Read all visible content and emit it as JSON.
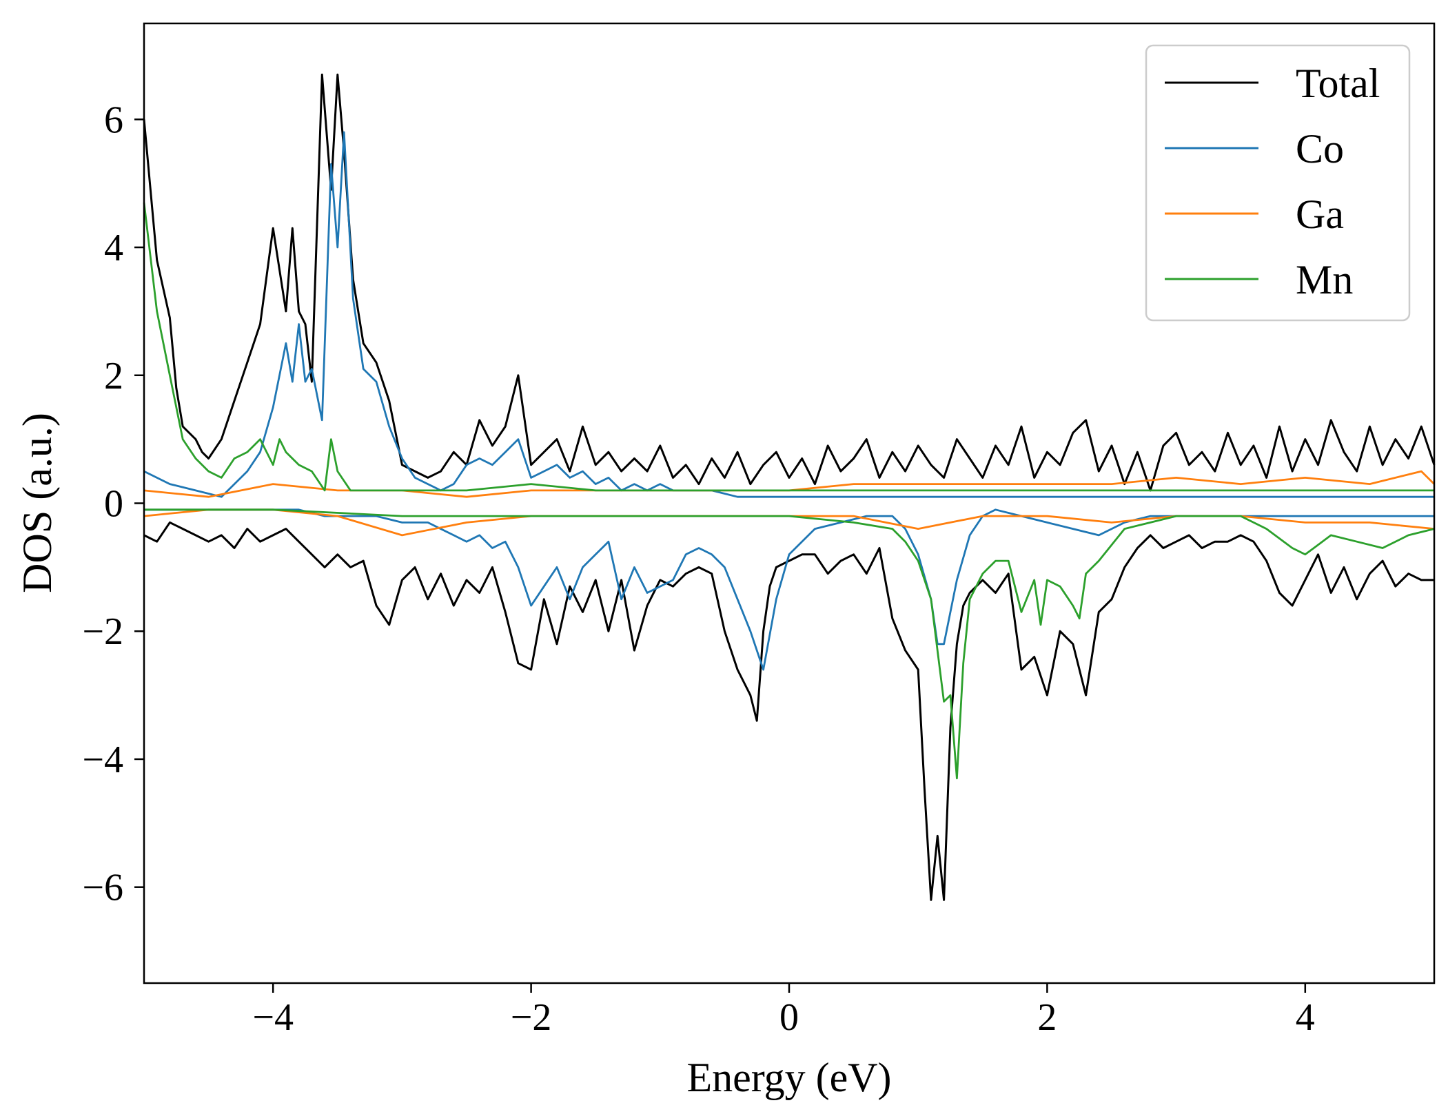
{
  "chart_data": {
    "type": "line",
    "title": "",
    "xlabel": "Energy (eV)",
    "ylabel": "DOS (a.u.)",
    "xlim": [
      -5,
      5
    ],
    "ylim": [
      -7.5,
      7.5
    ],
    "xticks": [
      -4,
      -2,
      0,
      2,
      4
    ],
    "xtick_labels": [
      "−4",
      "−2",
      "0",
      "2",
      "4"
    ],
    "yticks": [
      -6,
      -4,
      -2,
      0,
      2,
      4,
      6
    ],
    "ytick_labels": [
      "−6",
      "−4",
      "−2",
      "0",
      "2",
      "4",
      "6"
    ],
    "grid": false,
    "legend_position": "top-right",
    "series": [
      {
        "name": "Total",
        "color": "#000000",
        "spin_up": {
          "x": [
            -5.0,
            -4.9,
            -4.8,
            -4.75,
            -4.7,
            -4.6,
            -4.55,
            -4.5,
            -4.4,
            -4.3,
            -4.2,
            -4.1,
            -4.0,
            -3.9,
            -3.85,
            -3.8,
            -3.75,
            -3.7,
            -3.62,
            -3.55,
            -3.5,
            -3.45,
            -3.38,
            -3.3,
            -3.2,
            -3.1,
            -3.0,
            -2.9,
            -2.8,
            -2.7,
            -2.6,
            -2.5,
            -2.4,
            -2.3,
            -2.2,
            -2.1,
            -2.0,
            -1.9,
            -1.8,
            -1.7,
            -1.6,
            -1.5,
            -1.4,
            -1.3,
            -1.2,
            -1.1,
            -1.0,
            -0.9,
            -0.8,
            -0.7,
            -0.6,
            -0.5,
            -0.4,
            -0.3,
            -0.2,
            -0.1,
            0.0,
            0.1,
            0.2,
            0.3,
            0.4,
            0.5,
            0.6,
            0.7,
            0.8,
            0.9,
            1.0,
            1.1,
            1.2,
            1.3,
            1.4,
            1.5,
            1.6,
            1.7,
            1.8,
            1.9,
            2.0,
            2.1,
            2.2,
            2.3,
            2.4,
            2.5,
            2.6,
            2.7,
            2.8,
            2.9,
            3.0,
            3.1,
            3.2,
            3.3,
            3.4,
            3.5,
            3.6,
            3.7,
            3.8,
            3.9,
            4.0,
            4.1,
            4.2,
            4.3,
            4.4,
            4.5,
            4.6,
            4.7,
            4.8,
            4.9,
            5.0
          ],
          "y": [
            6.0,
            3.8,
            2.9,
            1.8,
            1.2,
            1.0,
            0.8,
            0.7,
            1.0,
            1.6,
            2.2,
            2.8,
            4.3,
            3.0,
            4.3,
            3.0,
            2.8,
            1.9,
            6.7,
            4.9,
            6.7,
            5.5,
            3.5,
            2.5,
            2.2,
            1.6,
            0.6,
            0.5,
            0.4,
            0.5,
            0.8,
            0.6,
            1.3,
            0.9,
            1.2,
            2.0,
            0.6,
            0.8,
            1.0,
            0.5,
            1.2,
            0.6,
            0.8,
            0.5,
            0.7,
            0.5,
            0.9,
            0.4,
            0.6,
            0.3,
            0.7,
            0.4,
            0.8,
            0.3,
            0.6,
            0.8,
            0.4,
            0.7,
            0.3,
            0.9,
            0.5,
            0.7,
            1.0,
            0.4,
            0.8,
            0.5,
            0.9,
            0.6,
            0.4,
            1.0,
            0.7,
            0.4,
            0.9,
            0.6,
            1.2,
            0.4,
            0.8,
            0.6,
            1.1,
            1.3,
            0.5,
            0.9,
            0.3,
            0.8,
            0.2,
            0.9,
            1.1,
            0.6,
            0.8,
            0.5,
            1.1,
            0.6,
            0.9,
            0.4,
            1.2,
            0.5,
            1.0,
            0.6,
            1.3,
            0.8,
            0.5,
            1.2,
            0.6,
            1.0,
            0.7,
            1.2,
            0.6
          ]
        },
        "spin_down": {
          "x": [
            -5.0,
            -4.9,
            -4.8,
            -4.7,
            -4.6,
            -4.5,
            -4.4,
            -4.3,
            -4.2,
            -4.1,
            -4.0,
            -3.9,
            -3.8,
            -3.7,
            -3.6,
            -3.5,
            -3.4,
            -3.3,
            -3.2,
            -3.1,
            -3.0,
            -2.9,
            -2.8,
            -2.7,
            -2.6,
            -2.5,
            -2.4,
            -2.3,
            -2.2,
            -2.1,
            -2.0,
            -1.9,
            -1.8,
            -1.7,
            -1.6,
            -1.5,
            -1.4,
            -1.3,
            -1.2,
            -1.1,
            -1.0,
            -0.9,
            -0.8,
            -0.7,
            -0.6,
            -0.5,
            -0.4,
            -0.3,
            -0.25,
            -0.2,
            -0.15,
            -0.1,
            0.0,
            0.1,
            0.2,
            0.3,
            0.4,
            0.5,
            0.6,
            0.7,
            0.8,
            0.9,
            1.0,
            1.05,
            1.1,
            1.15,
            1.2,
            1.25,
            1.3,
            1.35,
            1.4,
            1.5,
            1.6,
            1.7,
            1.8,
            1.9,
            2.0,
            2.1,
            2.2,
            2.3,
            2.4,
            2.5,
            2.6,
            2.7,
            2.8,
            2.9,
            3.0,
            3.1,
            3.2,
            3.3,
            3.4,
            3.5,
            3.6,
            3.7,
            3.8,
            3.9,
            4.0,
            4.1,
            4.2,
            4.3,
            4.4,
            4.5,
            4.6,
            4.7,
            4.8,
            4.9,
            5.0
          ],
          "y": [
            -0.5,
            -0.6,
            -0.3,
            -0.4,
            -0.5,
            -0.6,
            -0.5,
            -0.7,
            -0.4,
            -0.6,
            -0.5,
            -0.4,
            -0.6,
            -0.8,
            -1.0,
            -0.8,
            -1.0,
            -0.9,
            -1.6,
            -1.9,
            -1.2,
            -1.0,
            -1.5,
            -1.1,
            -1.6,
            -1.2,
            -1.4,
            -1.0,
            -1.7,
            -2.5,
            -2.6,
            -1.5,
            -2.2,
            -1.3,
            -1.7,
            -1.2,
            -2.0,
            -1.2,
            -2.3,
            -1.6,
            -1.2,
            -1.3,
            -1.1,
            -1.0,
            -1.1,
            -2.0,
            -2.6,
            -3.0,
            -3.4,
            -2.0,
            -1.3,
            -1.0,
            -0.9,
            -0.8,
            -0.8,
            -1.1,
            -0.9,
            -0.8,
            -1.1,
            -0.7,
            -1.8,
            -2.3,
            -2.6,
            -4.5,
            -6.2,
            -5.2,
            -6.2,
            -3.5,
            -2.2,
            -1.6,
            -1.4,
            -1.2,
            -1.4,
            -1.1,
            -2.6,
            -2.4,
            -3.0,
            -2.0,
            -2.2,
            -3.0,
            -1.7,
            -1.5,
            -1.0,
            -0.7,
            -0.5,
            -0.7,
            -0.6,
            -0.5,
            -0.7,
            -0.6,
            -0.6,
            -0.5,
            -0.6,
            -0.9,
            -1.4,
            -1.6,
            -1.2,
            -0.8,
            -1.4,
            -1.0,
            -1.5,
            -1.1,
            -0.9,
            -1.3,
            -1.1,
            -1.2,
            -1.2
          ]
        }
      },
      {
        "name": "Co",
        "color": "#1f77b4",
        "spin_up": {
          "x": [
            -5.0,
            -4.8,
            -4.6,
            -4.4,
            -4.2,
            -4.1,
            -4.0,
            -3.9,
            -3.85,
            -3.8,
            -3.75,
            -3.7,
            -3.62,
            -3.55,
            -3.5,
            -3.45,
            -3.38,
            -3.3,
            -3.2,
            -3.1,
            -3.0,
            -2.9,
            -2.8,
            -2.7,
            -2.6,
            -2.5,
            -2.4,
            -2.3,
            -2.2,
            -2.1,
            -2.0,
            -1.9,
            -1.8,
            -1.7,
            -1.6,
            -1.5,
            -1.4,
            -1.3,
            -1.2,
            -1.1,
            -1.0,
            -0.9,
            -0.8,
            -0.6,
            -0.4,
            -0.2,
            0.0,
            0.5,
            1.0,
            1.5,
            2.0,
            2.5,
            3.0,
            3.5,
            4.0,
            4.5,
            5.0
          ],
          "y": [
            0.5,
            0.3,
            0.2,
            0.1,
            0.5,
            0.8,
            1.5,
            2.5,
            1.9,
            2.8,
            1.9,
            2.1,
            1.3,
            5.3,
            4.0,
            5.8,
            3.2,
            2.1,
            1.9,
            1.2,
            0.7,
            0.4,
            0.3,
            0.2,
            0.3,
            0.6,
            0.7,
            0.6,
            0.8,
            1.0,
            0.4,
            0.5,
            0.6,
            0.4,
            0.5,
            0.3,
            0.4,
            0.2,
            0.3,
            0.2,
            0.3,
            0.2,
            0.2,
            0.2,
            0.1,
            0.1,
            0.1,
            0.1,
            0.1,
            0.1,
            0.1,
            0.1,
            0.1,
            0.1,
            0.1,
            0.1,
            0.1
          ]
        },
        "spin_down": {
          "x": [
            -5.0,
            -4.8,
            -4.6,
            -4.4,
            -4.2,
            -4.0,
            -3.8,
            -3.6,
            -3.4,
            -3.2,
            -3.0,
            -2.8,
            -2.6,
            -2.5,
            -2.4,
            -2.3,
            -2.2,
            -2.1,
            -2.0,
            -1.9,
            -1.8,
            -1.7,
            -1.6,
            -1.5,
            -1.4,
            -1.3,
            -1.2,
            -1.1,
            -1.0,
            -0.9,
            -0.8,
            -0.7,
            -0.6,
            -0.5,
            -0.4,
            -0.3,
            -0.2,
            -0.1,
            0.0,
            0.2,
            0.4,
            0.6,
            0.8,
            0.9,
            1.0,
            1.1,
            1.15,
            1.2,
            1.3,
            1.4,
            1.5,
            1.6,
            1.8,
            2.0,
            2.2,
            2.4,
            2.6,
            2.8,
            3.0,
            3.5,
            4.0,
            4.5,
            5.0
          ],
          "y": [
            -0.1,
            -0.1,
            -0.1,
            -0.1,
            -0.1,
            -0.1,
            -0.1,
            -0.2,
            -0.2,
            -0.2,
            -0.3,
            -0.3,
            -0.5,
            -0.6,
            -0.5,
            -0.7,
            -0.6,
            -1.0,
            -1.6,
            -1.3,
            -1.0,
            -1.5,
            -1.0,
            -0.8,
            -0.6,
            -1.5,
            -1.0,
            -1.4,
            -1.3,
            -1.2,
            -0.8,
            -0.7,
            -0.8,
            -1.0,
            -1.5,
            -2.0,
            -2.6,
            -1.5,
            -0.8,
            -0.4,
            -0.3,
            -0.2,
            -0.2,
            -0.4,
            -0.8,
            -1.5,
            -2.2,
            -2.2,
            -1.2,
            -0.5,
            -0.2,
            -0.1,
            -0.2,
            -0.3,
            -0.4,
            -0.5,
            -0.3,
            -0.2,
            -0.2,
            -0.2,
            -0.2,
            -0.2,
            -0.2
          ]
        }
      },
      {
        "name": "Ga",
        "color": "#ff7f0e",
        "spin_up": {
          "x": [
            -5.0,
            -4.5,
            -4.0,
            -3.5,
            -3.0,
            -2.5,
            -2.0,
            -1.5,
            -1.0,
            -0.5,
            0.0,
            0.5,
            1.0,
            1.5,
            2.0,
            2.5,
            3.0,
            3.5,
            4.0,
            4.5,
            4.9,
            5.0
          ],
          "y": [
            0.2,
            0.1,
            0.3,
            0.2,
            0.2,
            0.1,
            0.2,
            0.2,
            0.2,
            0.2,
            0.2,
            0.3,
            0.3,
            0.3,
            0.3,
            0.3,
            0.4,
            0.3,
            0.4,
            0.3,
            0.5,
            0.3
          ]
        },
        "spin_down": {
          "x": [
            -5.0,
            -4.5,
            -4.0,
            -3.5,
            -3.0,
            -2.5,
            -2.0,
            -1.5,
            -1.0,
            -0.5,
            0.0,
            0.5,
            1.0,
            1.5,
            2.0,
            2.5,
            3.0,
            3.5,
            4.0,
            4.5,
            5.0
          ],
          "y": [
            -0.2,
            -0.1,
            -0.1,
            -0.2,
            -0.5,
            -0.3,
            -0.2,
            -0.2,
            -0.2,
            -0.2,
            -0.2,
            -0.2,
            -0.4,
            -0.2,
            -0.2,
            -0.3,
            -0.2,
            -0.2,
            -0.3,
            -0.3,
            -0.4
          ]
        }
      },
      {
        "name": "Mn",
        "color": "#2ca02c",
        "spin_up": {
          "x": [
            -5.0,
            -4.9,
            -4.8,
            -4.7,
            -4.6,
            -4.5,
            -4.4,
            -4.3,
            -4.2,
            -4.1,
            -4.0,
            -3.95,
            -3.9,
            -3.8,
            -3.7,
            -3.6,
            -3.55,
            -3.5,
            -3.4,
            -3.2,
            -3.0,
            -2.5,
            -2.0,
            -1.5,
            -1.0,
            0.0,
            1.0,
            2.0,
            3.0,
            4.0,
            5.0
          ],
          "y": [
            4.7,
            3.0,
            2.0,
            1.0,
            0.7,
            0.5,
            0.4,
            0.7,
            0.8,
            1.0,
            0.6,
            1.0,
            0.8,
            0.6,
            0.5,
            0.2,
            1.0,
            0.5,
            0.2,
            0.2,
            0.2,
            0.2,
            0.3,
            0.2,
            0.2,
            0.2,
            0.2,
            0.2,
            0.2,
            0.2,
            0.2
          ]
        },
        "spin_down": {
          "x": [
            -5.0,
            -4.0,
            -3.0,
            -2.0,
            -1.0,
            0.0,
            0.5,
            0.8,
            0.9,
            1.0,
            1.1,
            1.2,
            1.25,
            1.3,
            1.35,
            1.4,
            1.5,
            1.6,
            1.7,
            1.8,
            1.9,
            1.95,
            2.0,
            2.1,
            2.2,
            2.25,
            2.3,
            2.4,
            2.6,
            2.8,
            3.0,
            3.5,
            3.7,
            3.9,
            4.0,
            4.2,
            4.4,
            4.6,
            4.8,
            5.0
          ],
          "y": [
            -0.1,
            -0.1,
            -0.2,
            -0.2,
            -0.2,
            -0.2,
            -0.3,
            -0.4,
            -0.6,
            -0.9,
            -1.5,
            -3.1,
            -3.0,
            -4.3,
            -2.5,
            -1.5,
            -1.1,
            -0.9,
            -0.9,
            -1.7,
            -1.2,
            -1.9,
            -1.2,
            -1.3,
            -1.6,
            -1.8,
            -1.1,
            -0.9,
            -0.4,
            -0.3,
            -0.2,
            -0.2,
            -0.4,
            -0.7,
            -0.8,
            -0.5,
            -0.6,
            -0.7,
            -0.5,
            -0.4
          ]
        }
      }
    ]
  }
}
